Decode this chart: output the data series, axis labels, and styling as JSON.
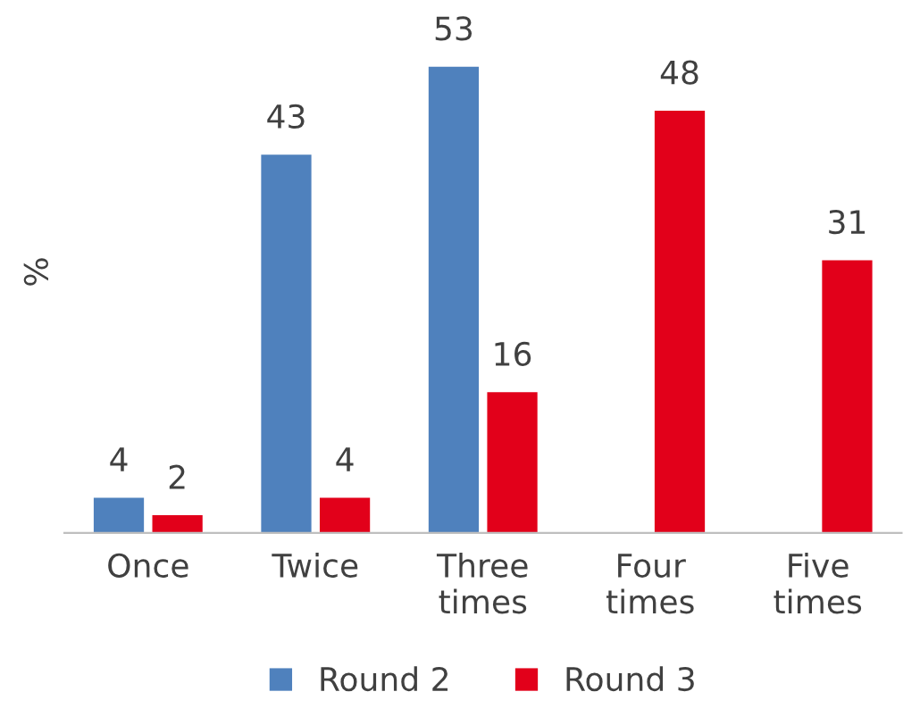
{
  "chart_data": {
    "type": "bar",
    "ylabel": "%",
    "categories": [
      "Once",
      "Twice",
      "Three\ntimes",
      "Four\ntimes",
      "Five\ntimes"
    ],
    "series": [
      {
        "name": "Round 2",
        "color": "#4f81bd",
        "values": [
          4,
          43,
          53,
          null,
          null
        ]
      },
      {
        "name": "Round 3",
        "color": "#e2001a",
        "values": [
          2,
          4,
          16,
          48,
          31
        ]
      }
    ],
    "data_labels": true,
    "legend": "bottom",
    "grid": false
  }
}
